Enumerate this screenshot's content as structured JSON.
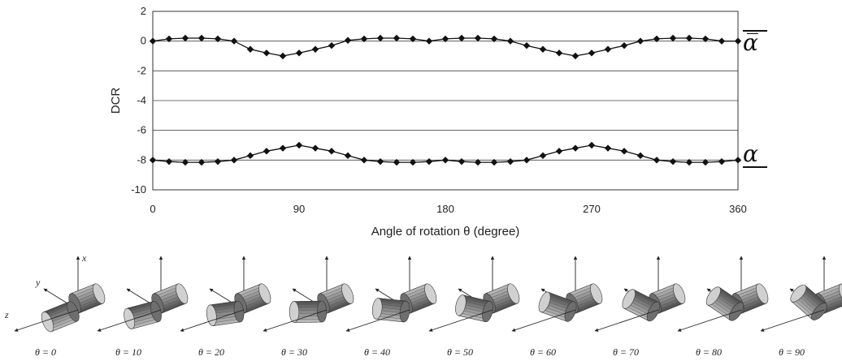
{
  "chart_data": {
    "type": "line",
    "title": "",
    "xlabel": "Angle of rotation θ (degree)",
    "ylabel": "DCR",
    "xlim": [
      0,
      360
    ],
    "ylim": [
      -10,
      2
    ],
    "xticks": [
      0,
      90,
      180,
      270,
      360
    ],
    "yticks": [
      2,
      0,
      -2,
      -4,
      -6,
      -8,
      -10
    ],
    "grid": "horizontal",
    "x": [
      0,
      10,
      20,
      30,
      40,
      50,
      60,
      70,
      80,
      90,
      100,
      110,
      120,
      130,
      140,
      150,
      160,
      170,
      180,
      190,
      200,
      210,
      220,
      230,
      240,
      250,
      260,
      270,
      280,
      290,
      300,
      310,
      320,
      330,
      340,
      350,
      360
    ],
    "series": [
      {
        "name": "α̅",
        "marker": "diamond",
        "values": [
          0,
          0.15,
          0.2,
          0.2,
          0.15,
          0,
          -0.55,
          -0.8,
          -1.0,
          -0.8,
          -0.55,
          -0.3,
          0.05,
          0.15,
          0.2,
          0.2,
          0.15,
          0,
          0.15,
          0.2,
          0.2,
          0.15,
          0,
          -0.3,
          -0.55,
          -0.8,
          -1.0,
          -0.8,
          -0.55,
          -0.3,
          0,
          0.15,
          0.2,
          0.2,
          0.15,
          0,
          0
        ]
      },
      {
        "name": "α",
        "marker": "diamond",
        "values": [
          -8,
          -8.1,
          -8.15,
          -8.15,
          -8.1,
          -8,
          -7.7,
          -7.4,
          -7.2,
          -7.0,
          -7.2,
          -7.4,
          -7.7,
          -8,
          -8.1,
          -8.15,
          -8.15,
          -8.1,
          -8,
          -8.1,
          -8.15,
          -8.15,
          -8.1,
          -8,
          -7.7,
          -7.4,
          -7.2,
          -7.0,
          -7.2,
          -7.4,
          -7.7,
          -8,
          -8.1,
          -8.15,
          -8.15,
          -8.1,
          -8
        ]
      }
    ]
  },
  "illustration": {
    "axis_labels": {
      "x": "x",
      "y": "y",
      "z": "z"
    },
    "angles": [
      {
        "value": 0,
        "label": "θ = 0"
      },
      {
        "value": 10,
        "label": "θ = 10"
      },
      {
        "value": 20,
        "label": "θ = 20"
      },
      {
        "value": 30,
        "label": "θ = 30"
      },
      {
        "value": 40,
        "label": "θ = 40"
      },
      {
        "value": 50,
        "label": "θ = 50"
      },
      {
        "value": 60,
        "label": "θ = 60"
      },
      {
        "value": 70,
        "label": "θ = 70"
      },
      {
        "value": 80,
        "label": "θ = 80"
      },
      {
        "value": 90,
        "label": "θ = 90"
      }
    ]
  }
}
